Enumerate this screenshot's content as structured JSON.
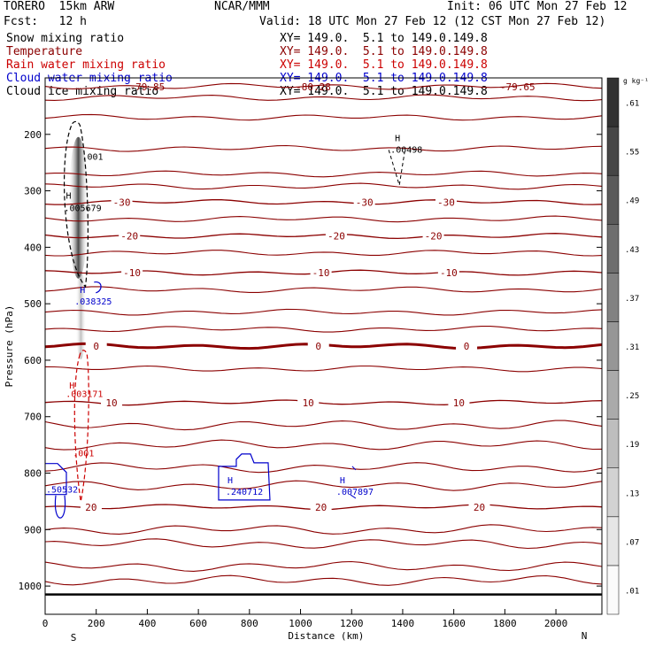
{
  "header": {
    "model": "TORERO  15km ARW",
    "center": "NCAR/MMM",
    "init": "Init: 06 UTC Mon 27 Feb 12",
    "fcst": "Fcst:   12 h",
    "valid": "Valid: 18 UTC Mon 27 Feb 12 (12 CST Mon 27 Feb 12)"
  },
  "fields": [
    {
      "name": "Snow mixing ratio",
      "color": "#000000",
      "xy": "XY= 149.0.  5.1 to 149.0.149.8"
    },
    {
      "name": "Temperature",
      "color": "#8b0000",
      "xy": "XY= 149.0.  5.1 to 149.0.149.8"
    },
    {
      "name": "Rain water mixing ratio",
      "color": "#cc0000",
      "xy": "XY= 149.0.  5.1 to 149.0.149.8"
    },
    {
      "name": "Cloud water mixing ratio",
      "color": "#0000cc",
      "xy": "XY= 149.0.  5.1 to 149.0.149.8"
    },
    {
      "name": "Cloud ice mixing ratio",
      "color": "#000000",
      "xy": "XY= 149.0.  5.1 to 149.0.149.8"
    }
  ],
  "chart_data": {
    "type": "cross-section",
    "xlabel": "Distance (km)",
    "ylabel": "Pressure (hPa)",
    "x_ticks": [
      0,
      200,
      400,
      600,
      800,
      1000,
      1200,
      1400,
      1600,
      1800,
      2000
    ],
    "x_range": [
      0,
      2180
    ],
    "y_ticks": [
      200,
      300,
      400,
      500,
      600,
      700,
      800,
      900,
      1000
    ],
    "y_range": [
      100,
      1050
    ],
    "x_end_labels": {
      "left": "S",
      "right": "N"
    },
    "colorbar": {
      "unit": "g kg⁻¹",
      "ticks": [
        ".01",
        ".07",
        ".13",
        ".19",
        ".25",
        ".31",
        ".37",
        ".43",
        ".49",
        ".55",
        ".61"
      ]
    },
    "temperature_contours": [
      {
        "p": 575,
        "value": 0,
        "labels_x": [
          200,
          1070,
          1650
        ],
        "bold": true
      },
      {
        "p": 675,
        "value": 10,
        "labels_x": [
          260,
          1030,
          1620
        ]
      },
      {
        "p": 860,
        "value": 20,
        "labels_x": [
          180,
          1080,
          1700
        ]
      },
      {
        "p": 445,
        "value": -10,
        "labels_x": [
          340,
          1080,
          1580
        ]
      },
      {
        "p": 380,
        "value": -20,
        "labels_x": [
          330,
          1140,
          1520
        ]
      },
      {
        "p": 320,
        "value": -30,
        "labels_x": [
          300,
          1250,
          1570
        ]
      }
    ],
    "rain_water": {
      "label": "H",
      "max": ".003171",
      "contour": ".001",
      "x": 150,
      "p": 660
    },
    "snow": {
      "label": "H",
      "max": ".005679",
      "contour": ".001",
      "x": 130,
      "p": 320
    },
    "snow_upper": {
      "label": "H",
      "max": ".00498",
      "x": 1380,
      "p": 215
    },
    "cloud_water": [
      {
        "label": "H",
        "max": ".038325",
        "x": 150,
        "p": 490
      },
      {
        "label": "H",
        "max": ".240712",
        "x": 700,
        "p": 810
      },
      {
        "label": "H",
        "max": ".007897",
        "x": 1140,
        "p": 810
      },
      {
        "label": "",
        "max": ".50532",
        "x": 0,
        "p": 830
      }
    ],
    "top_labels": [
      "-79.85",
      "-80.28",
      "-79.65"
    ]
  }
}
